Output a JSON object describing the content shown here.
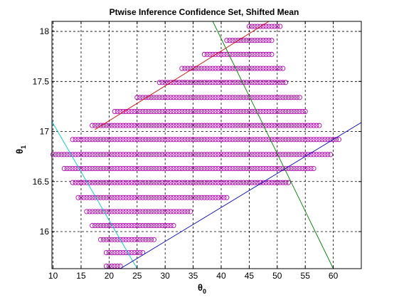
{
  "chart_data": {
    "type": "scatter",
    "title": "Ptwise Inference Confidence Set, Shifted Mean",
    "xlabel": "θ",
    "xlabel_sub": "0",
    "ylabel": "θ",
    "ylabel_sub": "1",
    "xlim": [
      9.8,
      65
    ],
    "ylim": [
      15.63,
      18.1
    ],
    "x_ticks": [
      10,
      15,
      20,
      25,
      30,
      35,
      40,
      45,
      50,
      55,
      60
    ],
    "y_ticks": [
      16,
      16.5,
      17,
      17.5,
      18
    ],
    "grid": true,
    "grid_style": "dashed",
    "marker": "circle",
    "marker_color": "#b000b0",
    "marker_step": 0.5,
    "rows": [
      {
        "y": 15.655,
        "x_start": 19.5,
        "x_end": 22.0
      },
      {
        "y": 15.79,
        "x_start": 19.5,
        "x_end": 26.0
      },
      {
        "y": 15.92,
        "x_start": 18.5,
        "x_end": 28.0
      },
      {
        "y": 16.06,
        "x_start": 17.0,
        "x_end": 31.5
      },
      {
        "y": 16.2,
        "x_start": 16.0,
        "x_end": 34.5
      },
      {
        "y": 16.34,
        "x_start": 14.5,
        "x_end": 41.0
      },
      {
        "y": 16.49,
        "x_start": 13.5,
        "x_end": 52.0
      },
      {
        "y": 16.63,
        "x_start": 12.0,
        "x_end": 56.5
      },
      {
        "y": 16.77,
        "x_start": 10.0,
        "x_end": 59.5
      },
      {
        "y": 16.92,
        "x_start": 13.5,
        "x_end": 61.0
      },
      {
        "y": 17.06,
        "x_start": 17.0,
        "x_end": 57.5
      },
      {
        "y": 17.2,
        "x_start": 21.0,
        "x_end": 55.0
      },
      {
        "y": 17.34,
        "x_start": 25.0,
        "x_end": 54.0
      },
      {
        "y": 17.49,
        "x_start": 29.0,
        "x_end": 51.5
      },
      {
        "y": 17.63,
        "x_start": 33.0,
        "x_end": 51.0
      },
      {
        "y": 17.77,
        "x_start": 37.0,
        "x_end": 49.0
      },
      {
        "y": 17.91,
        "x_start": 41.0,
        "x_end": 49.0
      },
      {
        "y": 18.05,
        "x_start": 45.0,
        "x_end": 50.5
      }
    ],
    "lines": [
      {
        "color": "#00c8c8",
        "x1": 9.8,
        "y1": 17.1,
        "x2": 25.0,
        "y2": 15.63
      },
      {
        "color": "#d00000",
        "x1": 17.5,
        "y1": 17.02,
        "x2": 48.5,
        "y2": 18.1
      },
      {
        "color": "#0000c0",
        "x1": 22.0,
        "y1": 15.63,
        "x2": 65.0,
        "y2": 17.09
      },
      {
        "color": "#008000",
        "x1": 38.5,
        "y1": 18.1,
        "x2": 60.0,
        "y2": 15.63
      }
    ]
  }
}
